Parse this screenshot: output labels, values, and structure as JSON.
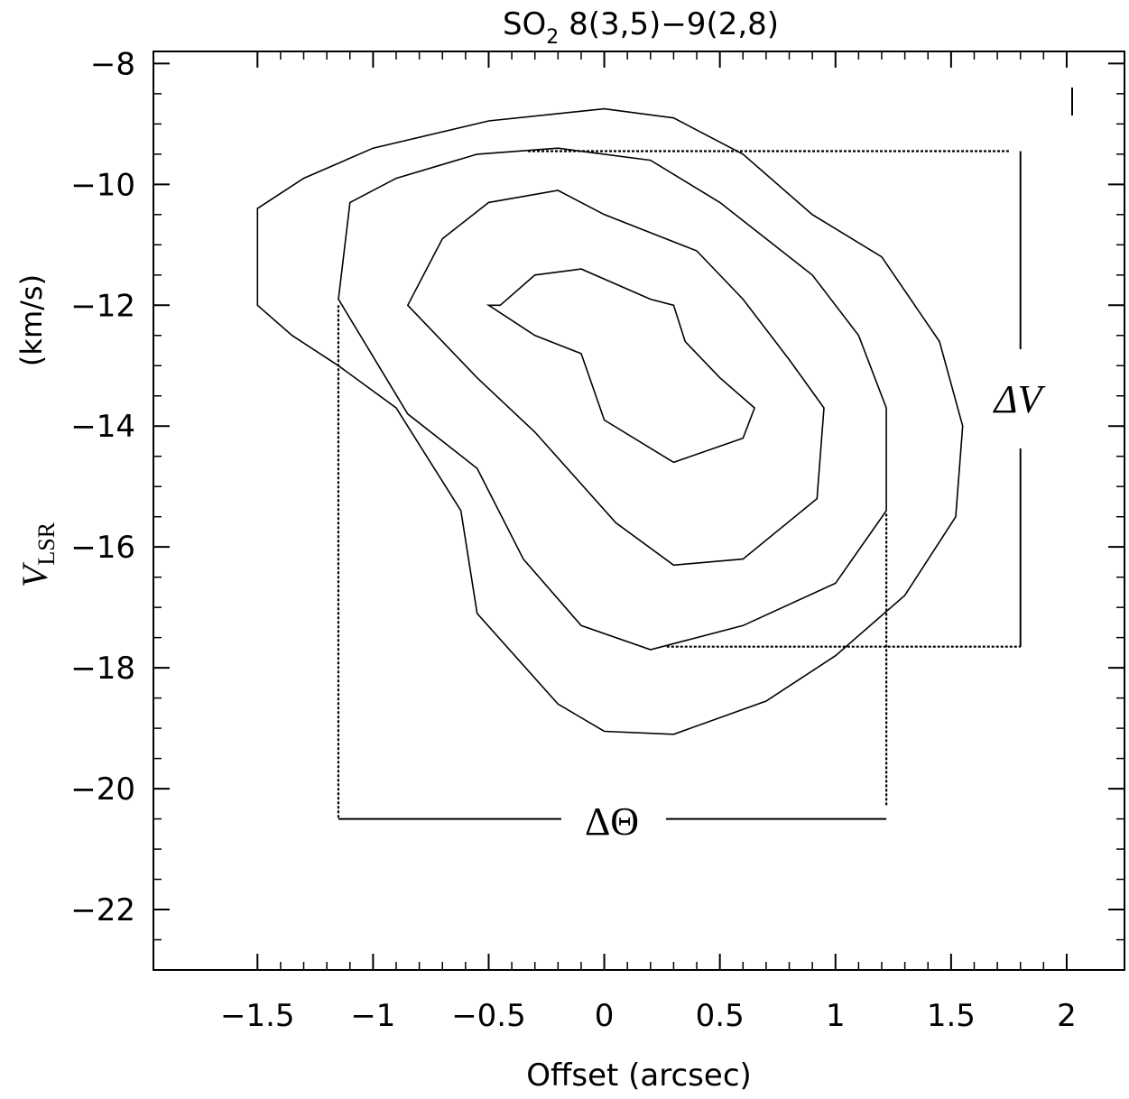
{
  "chart_data": {
    "type": "contour",
    "title": "SO₂ 8(3,5)−9(2,8)",
    "title_main": "SO",
    "title_sub": "2",
    "title_rest": " 8(3,5)−9(2,8)",
    "xlabel": "Offset (arcsec)",
    "ylabel_v": "V",
    "ylabel_sub": "LSR",
    "ylabel_units": "(km/s)",
    "xlim": [
      -1.95,
      2.25
    ],
    "ylim": [
      -23.0,
      -7.8
    ],
    "x_ticks": [
      -1.5,
      -1,
      -0.5,
      0,
      0.5,
      1,
      1.5,
      2
    ],
    "x_tick_labels": [
      "−1.5",
      "−1",
      "−0.5",
      "0",
      "0.5",
      "1",
      "1.5",
      "2"
    ],
    "y_ticks": [
      -8,
      -10,
      -12,
      -14,
      -16,
      -18,
      -20,
      -22
    ],
    "y_tick_labels": [
      "−8",
      "−10",
      "−12",
      "−14",
      "−16",
      "−18",
      "−20",
      "−22"
    ],
    "contours": [
      {
        "level": 1,
        "points": [
          [
            -1.5,
            -10.4
          ],
          [
            -1.3,
            -9.9
          ],
          [
            -1.0,
            -9.4
          ],
          [
            -0.5,
            -8.95
          ],
          [
            0.0,
            -8.75
          ],
          [
            0.3,
            -8.9
          ],
          [
            0.6,
            -9.5
          ],
          [
            0.9,
            -10.5
          ],
          [
            1.2,
            -11.2
          ],
          [
            1.45,
            -12.6
          ],
          [
            1.55,
            -14.0
          ],
          [
            1.52,
            -15.5
          ],
          [
            1.3,
            -16.8
          ],
          [
            1.0,
            -17.8
          ],
          [
            0.7,
            -18.55
          ],
          [
            0.3,
            -19.1
          ],
          [
            0.0,
            -19.05
          ],
          [
            -0.2,
            -18.6
          ],
          [
            -0.55,
            -17.1
          ],
          [
            -0.62,
            -15.4
          ],
          [
            -0.9,
            -13.7
          ],
          [
            -1.15,
            -13.0
          ],
          [
            -1.35,
            -12.5
          ],
          [
            -1.5,
            -12.0
          ]
        ]
      },
      {
        "level": 2,
        "points": [
          [
            -1.1,
            -10.3
          ],
          [
            -0.9,
            -9.9
          ],
          [
            -0.55,
            -9.5
          ],
          [
            -0.2,
            -9.4
          ],
          [
            0.2,
            -9.6
          ],
          [
            0.5,
            -10.3
          ],
          [
            0.9,
            -11.5
          ],
          [
            1.1,
            -12.5
          ],
          [
            1.22,
            -13.7
          ],
          [
            1.22,
            -15.4
          ],
          [
            1.0,
            -16.6
          ],
          [
            0.6,
            -17.3
          ],
          [
            0.2,
            -17.7
          ],
          [
            -0.1,
            -17.3
          ],
          [
            -0.35,
            -16.2
          ],
          [
            -0.55,
            -14.7
          ],
          [
            -0.85,
            -13.8
          ],
          [
            -1.15,
            -11.9
          ]
        ]
      },
      {
        "level": 3,
        "points": [
          [
            -0.7,
            -10.9
          ],
          [
            -0.5,
            -10.3
          ],
          [
            -0.2,
            -10.1
          ],
          [
            0.0,
            -10.5
          ],
          [
            0.4,
            -11.1
          ],
          [
            0.6,
            -11.9
          ],
          [
            0.8,
            -12.9
          ],
          [
            0.95,
            -13.7
          ],
          [
            0.92,
            -15.2
          ],
          [
            0.6,
            -16.2
          ],
          [
            0.3,
            -16.3
          ],
          [
            0.05,
            -15.6
          ],
          [
            -0.3,
            -14.1
          ],
          [
            -0.55,
            -13.2
          ],
          [
            -0.85,
            -12.0
          ]
        ]
      },
      {
        "level": 4,
        "points": [
          [
            -0.45,
            -12.0
          ],
          [
            -0.3,
            -11.5
          ],
          [
            -0.1,
            -11.4
          ],
          [
            0.2,
            -11.9
          ],
          [
            0.3,
            -12.0
          ],
          [
            0.35,
            -12.6
          ],
          [
            0.5,
            -13.2
          ],
          [
            0.65,
            -13.7
          ],
          [
            0.6,
            -14.2
          ],
          [
            0.3,
            -14.6
          ],
          [
            0.0,
            -13.9
          ],
          [
            -0.1,
            -12.8
          ],
          [
            -0.3,
            -12.5
          ],
          [
            -0.5,
            -12.0
          ]
        ]
      }
    ],
    "dv_label": "ΔV",
    "dtheta_label": "ΔΘ",
    "dv_top": -9.45,
    "dv_bottom": -17.65,
    "dtheta_left": -1.15,
    "dtheta_right": 1.22
  }
}
